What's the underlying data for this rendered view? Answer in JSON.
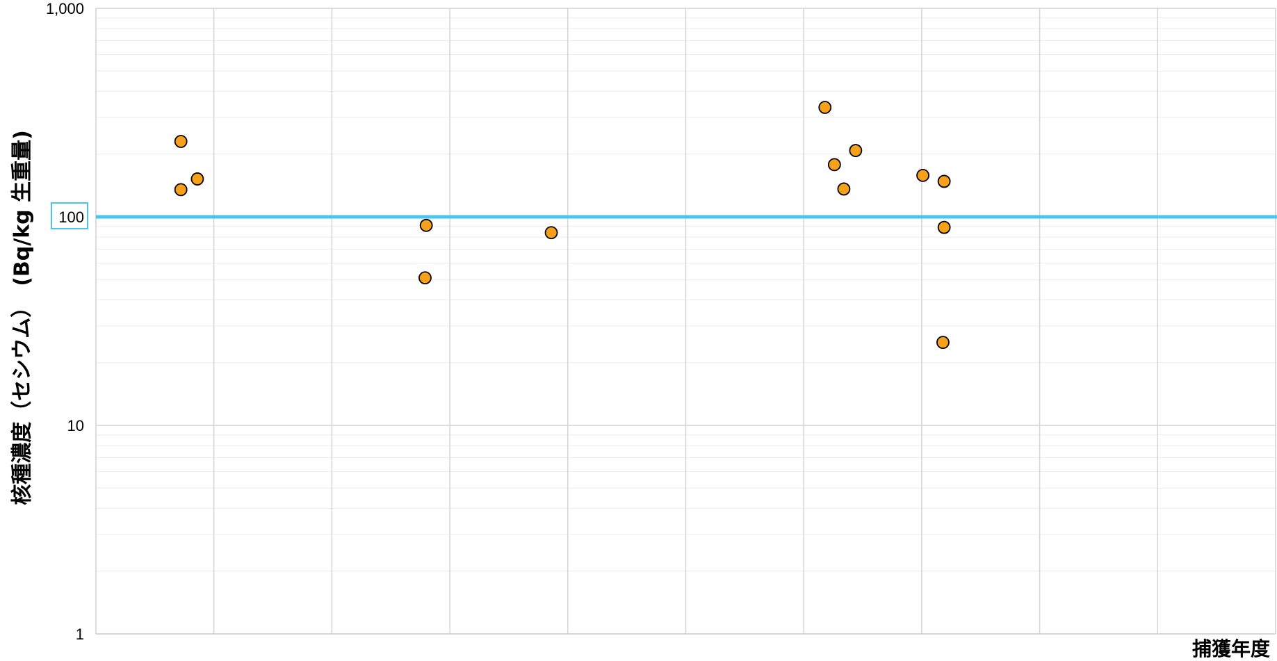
{
  "chart_data": {
    "type": "scatter",
    "title": "",
    "xlabel": "捕獲年度",
    "ylabel": "核種濃度（セシウム）　(Bq/kg 生重量)",
    "yscale": "log",
    "ylim": [
      1,
      1000
    ],
    "yticks": [
      {
        "value": 1,
        "label": "1"
      },
      {
        "value": 10,
        "label": "10"
      },
      {
        "value": 100,
        "label": "100"
      },
      {
        "value": 1000,
        "label": "1,000"
      }
    ],
    "xlim": [
      0,
      10
    ],
    "x_gridlines": [
      1,
      2,
      3,
      4,
      5,
      6,
      7,
      8,
      9
    ],
    "grid": true,
    "minor_grid": true,
    "legend": "none",
    "reference_line": {
      "value": 100,
      "color": "#49c5ef",
      "label_highlighted": true
    },
    "marker": {
      "shape": "circle",
      "fill": "#f7a11a",
      "stroke": "#000000"
    },
    "points": [
      {
        "x": 0.72,
        "y": 230
      },
      {
        "x": 0.72,
        "y": 135
      },
      {
        "x": 0.86,
        "y": 152
      },
      {
        "x": 2.8,
        "y": 91
      },
      {
        "x": 2.79,
        "y": 51
      },
      {
        "x": 3.86,
        "y": 84
      },
      {
        "x": 6.18,
        "y": 335
      },
      {
        "x": 6.26,
        "y": 178
      },
      {
        "x": 6.34,
        "y": 136
      },
      {
        "x": 6.44,
        "y": 208
      },
      {
        "x": 7.01,
        "y": 158
      },
      {
        "x": 7.19,
        "y": 148
      },
      {
        "x": 7.19,
        "y": 89
      },
      {
        "x": 7.18,
        "y": 25
      }
    ]
  }
}
